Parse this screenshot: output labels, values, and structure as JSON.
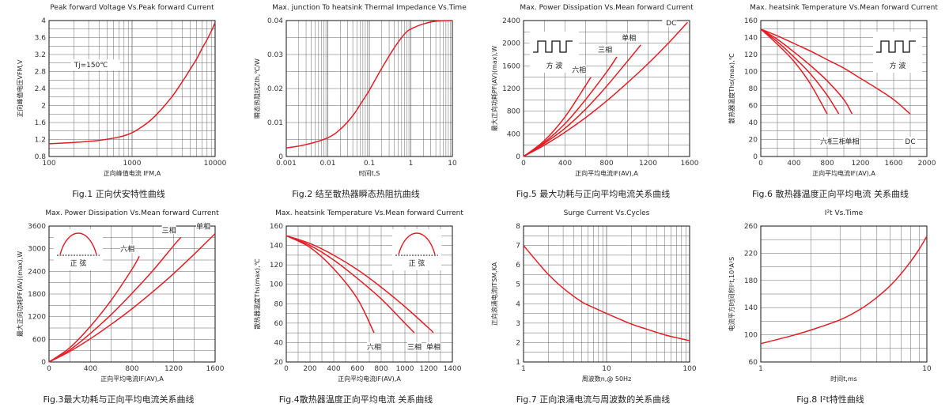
{
  "chart_data": [
    {
      "id": "fig1",
      "type": "line",
      "title": "Peak forward Voltage Vs.Peak forward Current",
      "caption": "Fig.1   正向伏安特性曲线",
      "xlabel": "正向峰值电流 IFM,A",
      "ylabel": "正向峰值电压VFM,V",
      "xscale": "log",
      "xlim": [
        100,
        10000
      ],
      "ylim": [
        0.8,
        4.0
      ],
      "xticks": [
        100,
        1000,
        10000
      ],
      "yticks": [
        0.8,
        1.2,
        1.6,
        2.0,
        2.4,
        2.8,
        3.2,
        3.6,
        4.0
      ],
      "ytick_labels": [
        "0.8",
        "1.2",
        "1.6",
        "2",
        "2.4",
        "2.8",
        "3.2",
        "3.6",
        "4"
      ],
      "grid": "on",
      "annotations": [
        {
          "text": "Tj=150℃",
          "x": 200,
          "y": 2.9
        }
      ],
      "series": [
        {
          "x": [
            100,
            200,
            400,
            700,
            1000,
            1500,
            2000,
            3000,
            4000,
            5000,
            6000,
            7000,
            8000,
            9000,
            10000
          ],
          "y": [
            1.1,
            1.13,
            1.18,
            1.26,
            1.36,
            1.58,
            1.8,
            2.2,
            2.55,
            2.85,
            3.1,
            3.35,
            3.55,
            3.75,
            3.95
          ]
        }
      ]
    },
    {
      "id": "fig2",
      "type": "line",
      "title": "Max. junction To heatsink Thermal Impedance Vs.Time",
      "caption": "Fig.2 结至散热器瞬态热阻抗曲线",
      "xlabel": "时间t,S",
      "ylabel": "瞬态热阻抗Zth,℃/W",
      "xscale": "log",
      "xlim": [
        0.001,
        10
      ],
      "ylim": [
        0,
        0.04
      ],
      "xticks": [
        0.001,
        0.01,
        0.1,
        1,
        10
      ],
      "xtick_labels": [
        "0.001",
        "0.01",
        "0.1",
        "1",
        "10"
      ],
      "yticks": [
        0,
        0.01,
        0.02,
        0.03,
        0.04
      ],
      "ytick_labels": [
        "0",
        "0.01",
        "0.02",
        "0.03",
        "0.04"
      ],
      "grid": "on",
      "series": [
        {
          "x": [
            0.001,
            0.003,
            0.01,
            0.02,
            0.04,
            0.07,
            0.1,
            0.2,
            0.4,
            0.7,
            1,
            2,
            4,
            10
          ],
          "y": [
            0.0025,
            0.0035,
            0.0055,
            0.008,
            0.012,
            0.0165,
            0.0195,
            0.026,
            0.032,
            0.036,
            0.0375,
            0.039,
            0.0398,
            0.04
          ]
        }
      ]
    },
    {
      "id": "fig5",
      "type": "line",
      "title": "Max. Power Dissipation Vs.Mean forward Current",
      "caption": "Fig.5 最大功耗与正向平均电流关系曲线",
      "xlabel": "正向平均电流IF(AV),A",
      "ylabel": "最大正向功耗PF(AV)(max),W",
      "xlim": [
        0,
        1600
      ],
      "ylim": [
        0,
        2400
      ],
      "xticks": [
        0,
        400,
        800,
        1200,
        1600
      ],
      "yticks": [
        0,
        400,
        800,
        1200,
        1600,
        2000,
        2400
      ],
      "grid": "on",
      "inset_label": "方  波",
      "series": [
        {
          "name": "六相",
          "x": [
            0,
            200,
            400,
            600,
            650
          ],
          "y": [
            0,
            280,
            700,
            1260,
            1400
          ]
        },
        {
          "name": "三相",
          "x": [
            0,
            200,
            400,
            600,
            800,
            900
          ],
          "y": [
            0,
            250,
            580,
            1010,
            1490,
            1760
          ]
        },
        {
          "name": "单相",
          "x": [
            0,
            200,
            400,
            600,
            800,
            1000,
            1130
          ],
          "y": [
            0,
            230,
            500,
            840,
            1240,
            1680,
            1970
          ]
        },
        {
          "name": "DC",
          "x": [
            0,
            200,
            400,
            600,
            800,
            1000,
            1200,
            1400,
            1580
          ],
          "y": [
            0,
            200,
            430,
            690,
            980,
            1300,
            1640,
            2010,
            2370
          ]
        }
      ]
    },
    {
      "id": "fig6",
      "type": "line",
      "title": "Max. heatsink Temperature Vs.Mean forward Current",
      "caption": "Fig.6 散热器温度正向平均电流  关系曲线",
      "xlabel": "正向平均电流IF(AV),A",
      "ylabel": "散热器温度Ths(max),℃",
      "xlim": [
        0,
        2000
      ],
      "ylim": [
        0,
        160
      ],
      "xticks": [
        0,
        400,
        800,
        1200,
        1600,
        2000
      ],
      "yticks": [
        0,
        20,
        40,
        60,
        80,
        100,
        120,
        140,
        160
      ],
      "grid": "on",
      "inset_label": "方  波",
      "series": [
        {
          "name": "六相",
          "x": [
            0,
            200,
            400,
            600,
            800
          ],
          "y": [
            150,
            132,
            112,
            85,
            50
          ]
        },
        {
          "name": "三相",
          "x": [
            0,
            200,
            400,
            600,
            800,
            940
          ],
          "y": [
            150,
            135,
            117,
            97,
            72,
            50
          ]
        },
        {
          "name": "单相",
          "x": [
            0,
            200,
            400,
            600,
            800,
            1000,
            1100
          ],
          "y": [
            150,
            138,
            123,
            107,
            89,
            67,
            50
          ]
        },
        {
          "name": "DC",
          "x": [
            0,
            200,
            400,
            600,
            800,
            1000,
            1200,
            1400,
            1600,
            1800
          ],
          "y": [
            150,
            142,
            133,
            124,
            114,
            104,
            92,
            80,
            67,
            50
          ]
        }
      ]
    },
    {
      "id": "fig3",
      "type": "line",
      "title": "Max. Power Dissipation Vs.Mean forward Current",
      "caption": "Fig.3最大功耗与正向平均电流关系曲线",
      "xlabel": "正向平均电流IF(AV),A",
      "ylabel": "最大正向功耗PF(AV)(max),W",
      "xlim": [
        0,
        1600
      ],
      "ylim": [
        0,
        3600
      ],
      "xticks": [
        0,
        400,
        800,
        1200,
        1600
      ],
      "yticks": [
        0,
        600,
        1200,
        1800,
        2400,
        3000,
        3600
      ],
      "ytick_labels": [
        "0",
        "600",
        "1200",
        "1800",
        "2400",
        "3000",
        "3600"
      ],
      "extra_yticks_unlabeled": [
        300,
        900,
        1500,
        2100,
        2700,
        3300
      ],
      "grid": "on",
      "inset_label": "正  弦",
      "series": [
        {
          "name": "六相",
          "x": [
            0,
            200,
            400,
            600,
            800,
            870
          ],
          "y": [
            0,
            380,
            950,
            1640,
            2460,
            2800
          ]
        },
        {
          "name": "三相",
          "x": [
            0,
            200,
            400,
            600,
            800,
            1000,
            1200,
            1270
          ],
          "y": [
            0,
            320,
            760,
            1260,
            1820,
            2420,
            3080,
            3300
          ]
        },
        {
          "name": "单相",
          "x": [
            0,
            200,
            400,
            600,
            800,
            1000,
            1200,
            1400,
            1600
          ],
          "y": [
            0,
            280,
            620,
            1000,
            1410,
            1860,
            2340,
            2860,
            3400
          ]
        }
      ]
    },
    {
      "id": "fig4",
      "type": "line",
      "title": "Max. heatsink Temperature Vs.Mean forward Current",
      "caption": "Fig.4散热器温度正向平均电流  关系曲线",
      "xlabel": "正向平均电流IF(AV),A",
      "ylabel": "散热器温度Ths(max),℃",
      "xlim": [
        0,
        1400
      ],
      "ylim": [
        20,
        160
      ],
      "xticks": [
        0,
        200,
        400,
        600,
        800,
        1000,
        1200,
        1400
      ],
      "yticks": [
        20,
        40,
        60,
        80,
        100,
        120,
        140,
        160
      ],
      "grid": "on",
      "inset_label": "正  弦",
      "series": [
        {
          "name": "六相",
          "x": [
            0,
            200,
            400,
            600,
            740
          ],
          "y": [
            150,
            138,
            116,
            85,
            50
          ]
        },
        {
          "name": "三相",
          "x": [
            0,
            200,
            400,
            600,
            800,
            1000,
            1080
          ],
          "y": [
            150,
            140,
            125,
            106,
            85,
            60,
            50
          ]
        },
        {
          "name": "单相",
          "x": [
            0,
            200,
            400,
            600,
            800,
            1000,
            1200,
            1240
          ],
          "y": [
            150,
            142,
            130,
            115,
            97,
            77,
            55,
            50
          ]
        }
      ]
    },
    {
      "id": "fig7",
      "type": "line",
      "title": "Surge Current Vs.Cycles",
      "caption": "Fig.7 正向浪涌电流与周波数的关系曲线",
      "xlabel": "周波数n,@ 50Hz",
      "ylabel": "正向浪涌电流ITSM,KA",
      "xscale": "log",
      "xlim": [
        1,
        100
      ],
      "ylim": [
        1,
        8
      ],
      "xticks": [
        1,
        10,
        100
      ],
      "yticks": [
        1,
        2,
        3,
        4,
        5,
        6,
        7,
        8
      ],
      "grid": "on",
      "series": [
        {
          "x": [
            1,
            1.5,
            2,
            3,
            5,
            7,
            10,
            20,
            30,
            50,
            70,
            100
          ],
          "y": [
            7.0,
            6.1,
            5.5,
            4.8,
            4.1,
            3.8,
            3.5,
            2.95,
            2.7,
            2.4,
            2.25,
            2.1
          ]
        }
      ]
    },
    {
      "id": "fig8",
      "type": "line",
      "title": "I²t  Vs.Time",
      "caption": "Fig.8 I²t特性曲线",
      "xlabel": "时间t,ms",
      "ylabel": "电流平方时间积I²t,10³A²S",
      "xscale": "log",
      "xlim": [
        1,
        10
      ],
      "ylim": [
        60,
        260
      ],
      "xticks": [
        1,
        10
      ],
      "yticks": [
        60,
        100,
        140,
        180,
        220,
        260
      ],
      "grid": "on",
      "series": [
        {
          "x": [
            1,
            1.5,
            2,
            3,
            4,
            5,
            6,
            7,
            8,
            9,
            10
          ],
          "y": [
            87,
            98,
            107,
            122,
            138,
            155,
            172,
            190,
            208,
            226,
            245
          ]
        }
      ]
    }
  ]
}
